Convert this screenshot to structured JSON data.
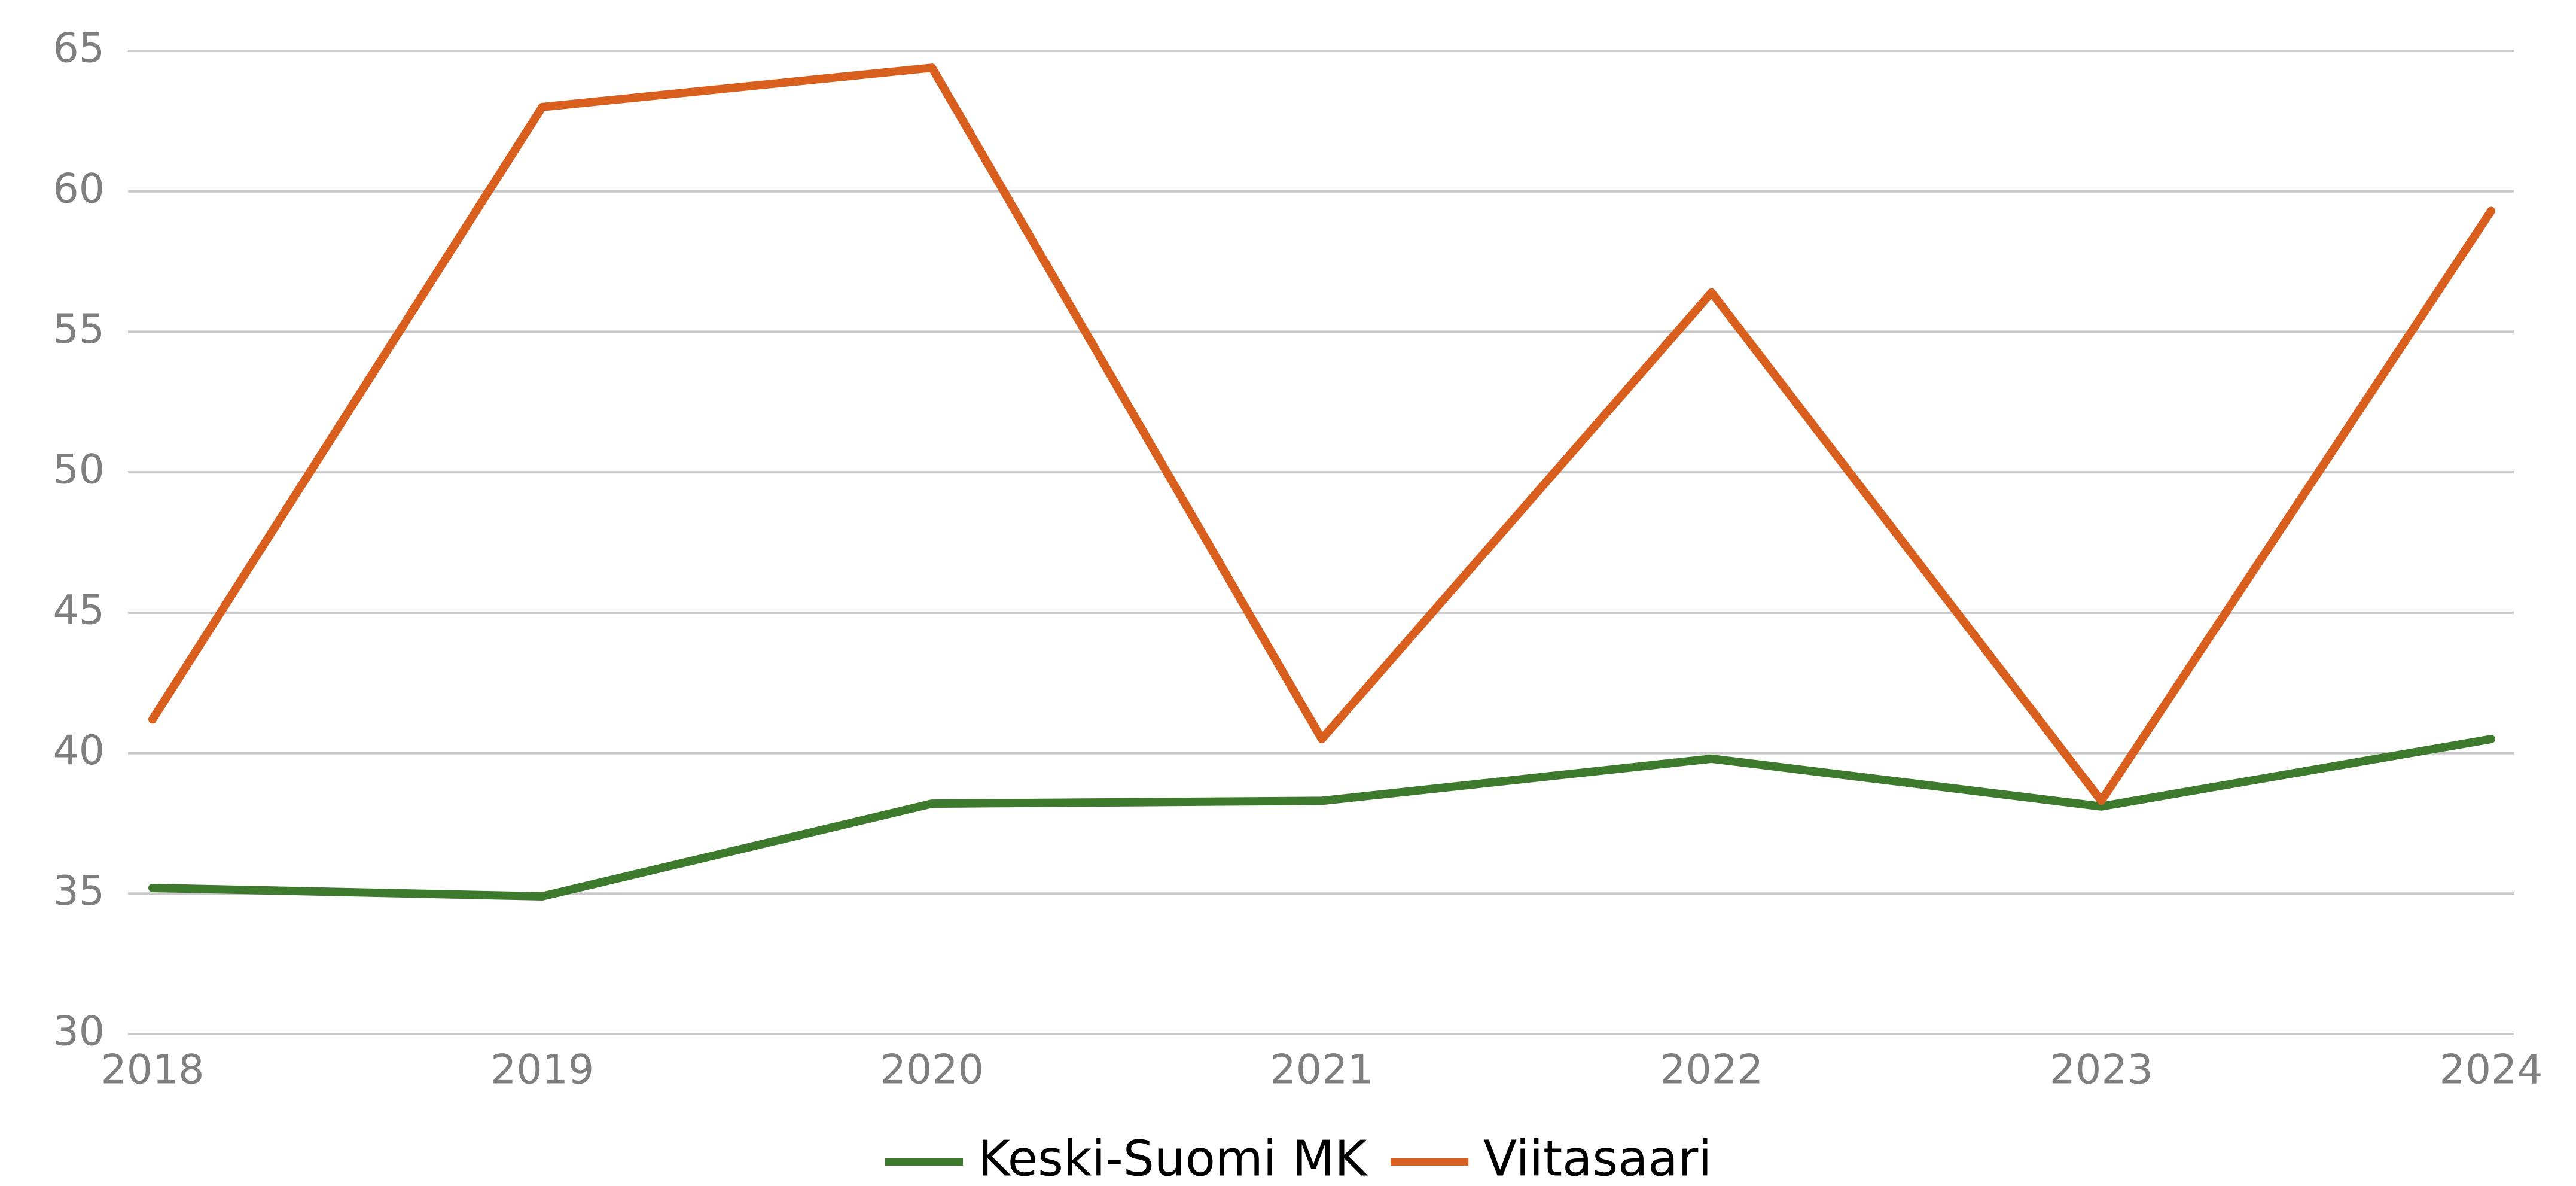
{
  "chart_data": {
    "type": "line",
    "categories": [
      "2018",
      "2019",
      "2020",
      "2021",
      "2022",
      "2023",
      "2024"
    ],
    "series": [
      {
        "name": "Keski-Suomi MK",
        "color": "#3e7a2e",
        "values": [
          35.2,
          34.9,
          38.2,
          38.3,
          39.8,
          38.1,
          40.5
        ]
      },
      {
        "name": "Viitasaari",
        "color": "#d95f1f",
        "values": [
          41.2,
          63.0,
          64.4,
          40.5,
          56.4,
          38.3,
          59.3
        ]
      }
    ],
    "ylim": [
      30,
      65
    ],
    "yticks": [
      30,
      35,
      40,
      45,
      50,
      55,
      60,
      65
    ],
    "grid": true,
    "legend": "bottom"
  }
}
